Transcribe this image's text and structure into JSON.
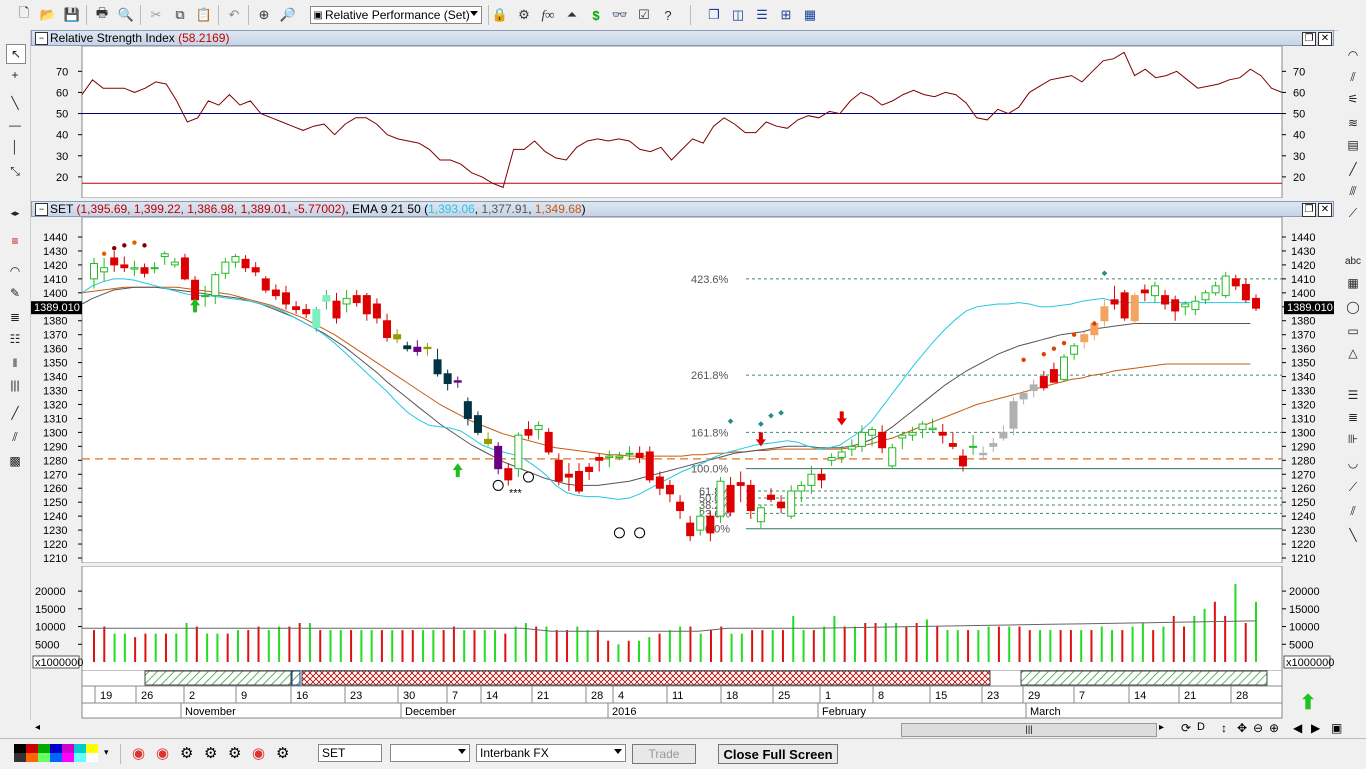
{
  "toolbar": {
    "indicator_select": "Relative Performance (Set)",
    "icons": [
      "new-icon",
      "open-icon",
      "save-icon",
      "print-icon",
      "print-preview-icon",
      "cut-icon",
      "copy-icon",
      "paste-icon",
      "undo-icon",
      "crosshair-icon",
      "zoom-icon",
      "dollar-icon",
      "binoculars-icon",
      "help-icon"
    ]
  },
  "rsi_panel": {
    "title": "Relative Strength Index",
    "value": "(58.2169)",
    "y_ticks": [
      "70",
      "60",
      "50",
      "40",
      "30",
      "20"
    ]
  },
  "price_panel": {
    "symbol": "SET",
    "ohlc": "(1,395.69, 1,399.22, 1,386.98, 1,389.01, -5.77002)",
    "ema_label": ", EMA 9 21 50 (",
    "ema1": "1,393.06",
    "ema2": "1,377.91",
    "ema3": "1,349.68",
    "ema_close": ")",
    "price_tag": "1389.010",
    "y_ticks": [
      "1440",
      "1430",
      "1420",
      "1410",
      "1400",
      "1390",
      "1380",
      "1370",
      "1360",
      "1350",
      "1340",
      "1330",
      "1320",
      "1310",
      "1300",
      "1290",
      "1280",
      "1270",
      "1260",
      "1250",
      "1240",
      "1230",
      "1220",
      "1210"
    ],
    "fib_labels": [
      "423.6%",
      "261.8%",
      "161.8%",
      "100.0%",
      "61.8%",
      "50.0%",
      "38.2%",
      "23.6%",
      "0.0%"
    ],
    "marker_text": "***"
  },
  "volume_panel": {
    "y_ticks": [
      "20000",
      "15000",
      "10000",
      "5000"
    ],
    "multiplier": "x1000000"
  },
  "date_axis": {
    "days": [
      "19",
      "26",
      "2",
      "9",
      "16",
      "23",
      "30",
      "7",
      "14",
      "21",
      "28",
      "4",
      "11",
      "18",
      "25",
      "1",
      "8",
      "15",
      "23",
      "29",
      "7",
      "14",
      "21",
      "28"
    ],
    "months": [
      "November",
      "December",
      "2016",
      "February",
      "March"
    ]
  },
  "bottom_bar": {
    "symbol_input": "SET",
    "second_select": "",
    "feed_select": "Interbank FX",
    "trade_button": "Trade",
    "close_full_screen": "Close Full Screen"
  },
  "colors": {
    "rsi_line": "#800000",
    "rsi_mid": "#000080",
    "rsi_low": "#c00000",
    "ema_fast": "#22c8e0",
    "ema_mid": "#555555",
    "ema_slow": "#c85a10",
    "up_candle": "#22bb22",
    "down_candle": "#dd0000",
    "vol_up": "#22dd22",
    "vol_down": "#dd1111"
  }
}
